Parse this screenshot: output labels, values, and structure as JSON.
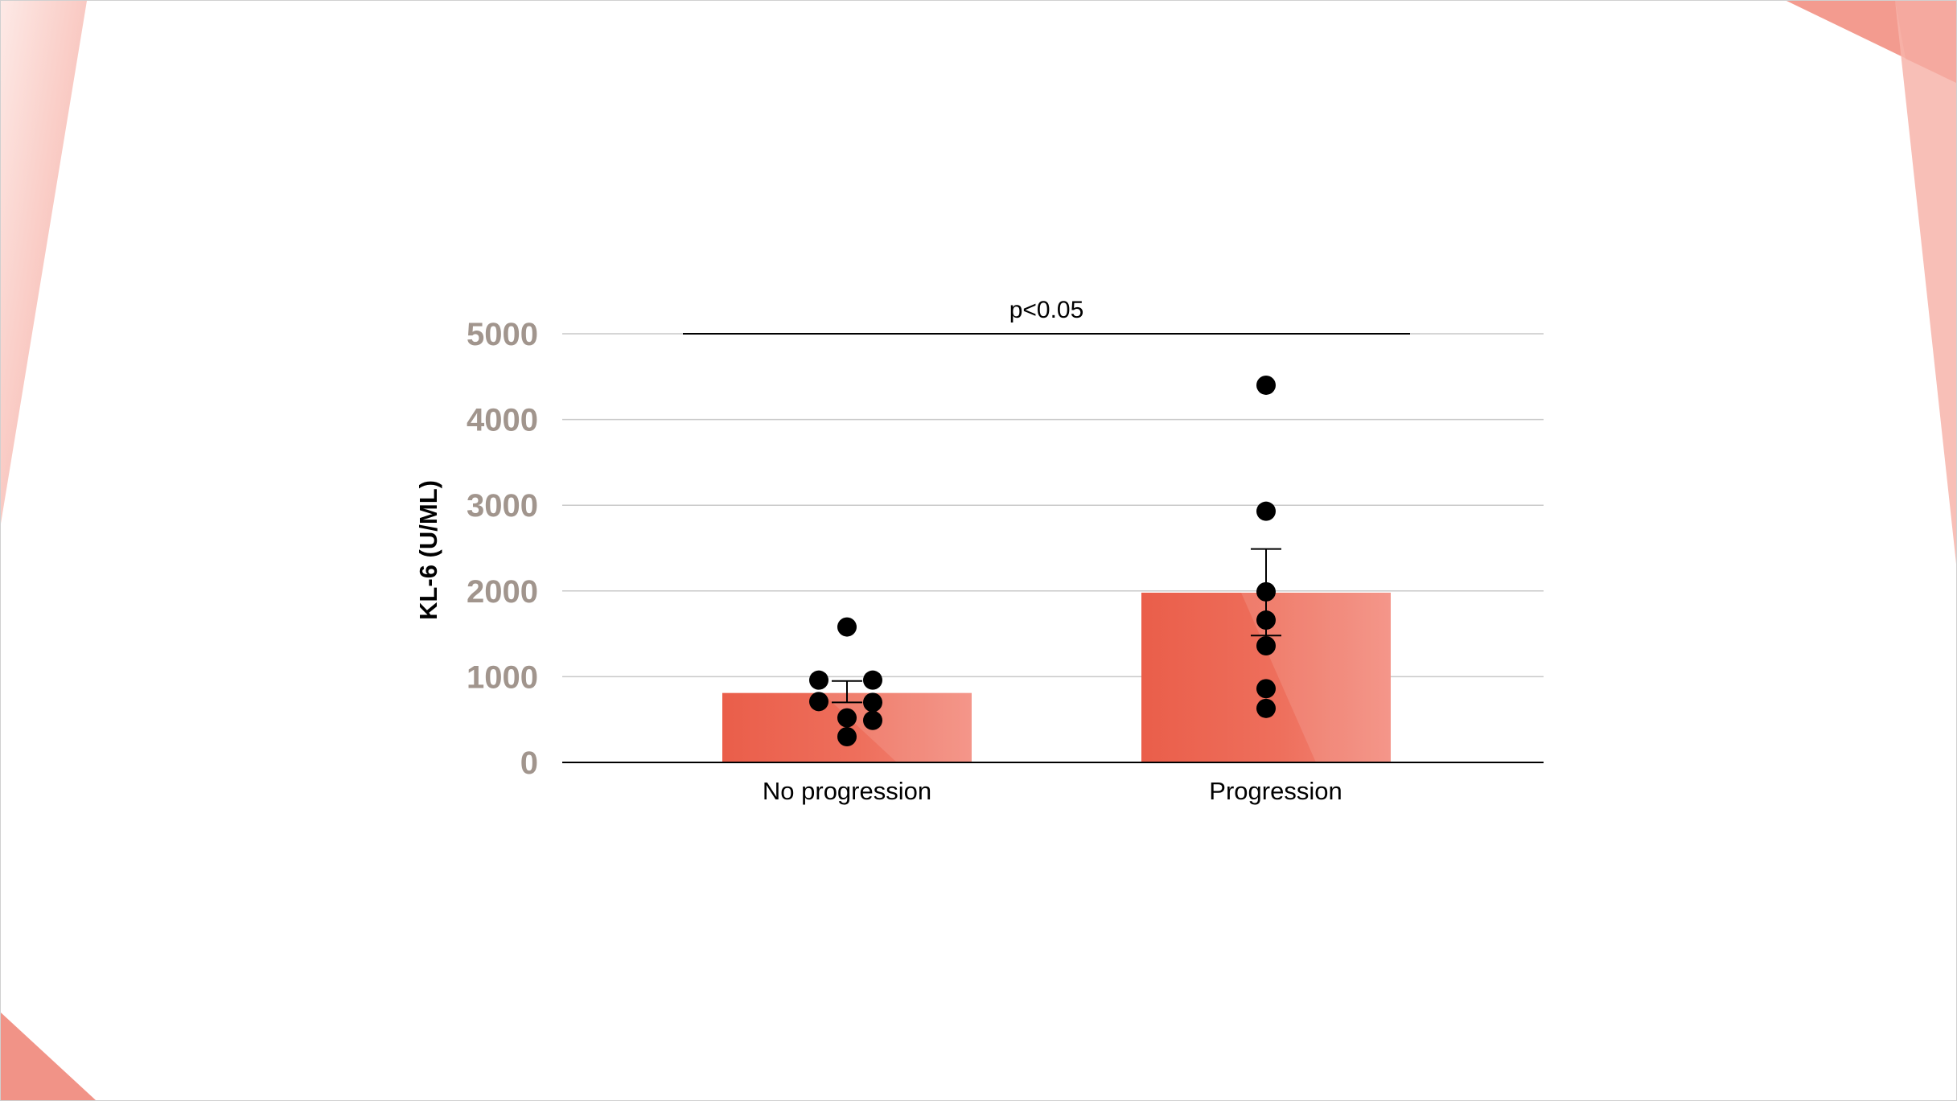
{
  "colors": {
    "bar": "#f0806c",
    "bar_dark": "#e85a45",
    "points": "#000000",
    "tick_text": "#a1958d",
    "decoration": "#f4a59a"
  },
  "chart_data": {
    "type": "bar",
    "categories": [
      "No progression",
      "Progression"
    ],
    "values": [
      810,
      1980
    ],
    "error_bars": [
      {
        "lower": 700,
        "upper": 950
      },
      {
        "lower": 1480,
        "upper": 2490
      }
    ],
    "points": [
      [
        1580,
        960,
        960,
        710,
        700,
        520,
        490,
        300
      ],
      [
        4400,
        2930,
        1990,
        1660,
        1360,
        860,
        630
      ]
    ],
    "ylabel": "KL-6 (U/ML)",
    "xlabel": "",
    "ylim": [
      0,
      5000
    ],
    "yticks": [
      0,
      1000,
      2000,
      3000,
      4000,
      5000
    ],
    "grid": true,
    "annotation": {
      "text": "p<0.05",
      "y": 5000
    }
  }
}
